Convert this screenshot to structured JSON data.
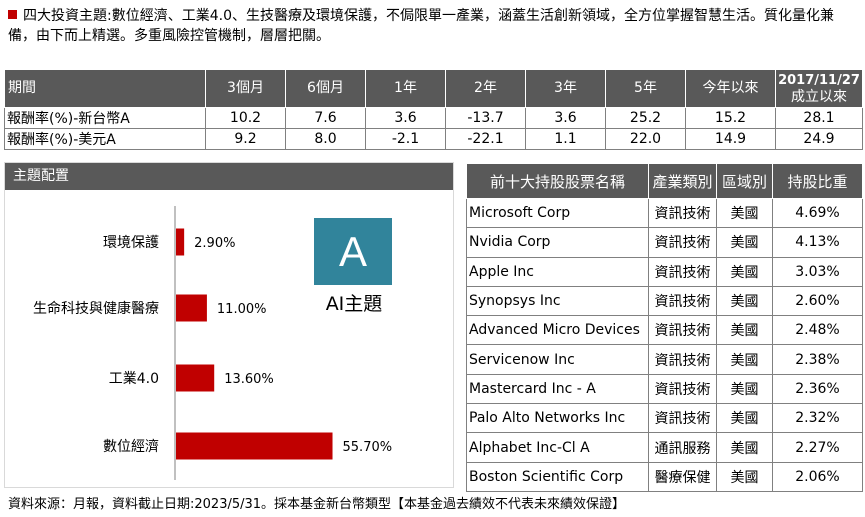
{
  "intro": {
    "text": "四大投資主題:數位經濟、工業4.0、生技醫療及環境保護，不侷限單一產業，涵蓋生活創新領域，全方位掌握智慧生活。質化量化兼備，由下而上精選。多重風險控管機制，層層把關。",
    "bullet_color": "#c00000"
  },
  "performance": {
    "headers": [
      "期間",
      "3個月",
      "6個月",
      "1年",
      "2年",
      "3年",
      "5年",
      "今年以來",
      "2017/11/27",
      "成立以來"
    ],
    "rows": [
      {
        "label": "報酬率(%)-新台幣A",
        "values": [
          "10.2",
          "7.6",
          "3.6",
          "-13.7",
          "3.6",
          "25.2",
          "15.2",
          "28.1"
        ]
      },
      {
        "label": "報酬率(%)-美元A",
        "values": [
          "9.2",
          "8.0",
          "-2.1",
          "-22.1",
          "1.1",
          "22.0",
          "14.9",
          "24.9"
        ]
      }
    ]
  },
  "theme": {
    "title": "主題配置",
    "badge_letter": "A",
    "badge_label": "AI主題",
    "badge_color": "#31849b"
  },
  "chart_data": {
    "type": "bar",
    "orientation": "horizontal",
    "categories": [
      "環境保護",
      "生命科技與健康醫療",
      "工業4.0",
      "數位經濟"
    ],
    "values": [
      2.9,
      11.0,
      13.6,
      55.7
    ],
    "value_labels": [
      "2.90%",
      "11.00%",
      "13.60%",
      "55.70%"
    ],
    "bar_color": "#c00000",
    "xlim": [
      0,
      100
    ],
    "grid": false,
    "legend": "none"
  },
  "holdings": {
    "headers": [
      "前十大持股股票名稱",
      "產業類別",
      "區域別",
      "持股比重"
    ],
    "rows": [
      {
        "name": "Microsoft Corp",
        "sector": "資訊技術",
        "region": "美國",
        "weight": "4.69%"
      },
      {
        "name": "Nvidia Corp",
        "sector": "資訊技術",
        "region": "美國",
        "weight": "4.13%"
      },
      {
        "name": "Apple Inc",
        "sector": "資訊技術",
        "region": "美國",
        "weight": "3.03%"
      },
      {
        "name": "Synopsys Inc",
        "sector": "資訊技術",
        "region": "美國",
        "weight": "2.60%"
      },
      {
        "name": "Advanced Micro Devices",
        "sector": "資訊技術",
        "region": "美國",
        "weight": "2.48%"
      },
      {
        "name": "Servicenow Inc",
        "sector": "資訊技術",
        "region": "美國",
        "weight": "2.38%"
      },
      {
        "name": "Mastercard Inc - A",
        "sector": "資訊技術",
        "region": "美國",
        "weight": "2.36%"
      },
      {
        "name": "Palo Alto Networks Inc",
        "sector": "資訊技術",
        "region": "美國",
        "weight": "2.32%"
      },
      {
        "name": "Alphabet Inc-Cl A",
        "sector": "通訊服務",
        "region": "美國",
        "weight": "2.27%"
      },
      {
        "name": "Boston Scientific Corp",
        "sector": "醫療保健",
        "region": "美國",
        "weight": "2.06%"
      }
    ]
  },
  "footer": {
    "text": "資料來源：月報，資料截止日期:2023/5/31。採本基金新台幣類型【本基金過去績效不代表未來績效保證】"
  }
}
